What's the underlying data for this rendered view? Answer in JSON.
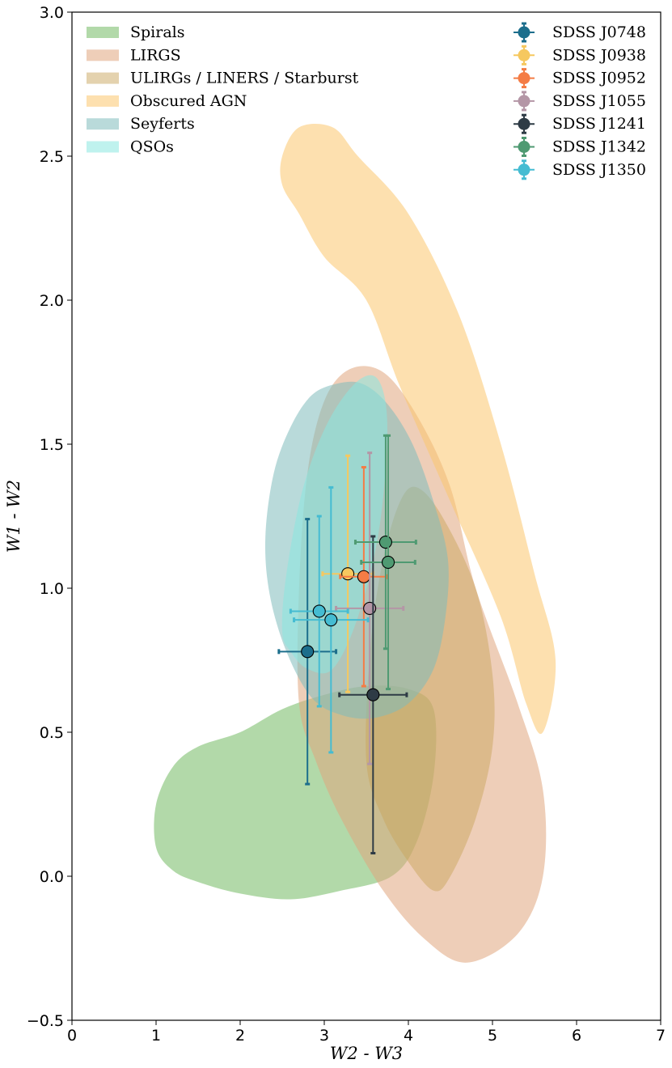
{
  "chart_data": {
    "type": "scatter",
    "title": "",
    "xlabel": "W2 - W3",
    "ylabel": "W1 - W2",
    "xlim": [
      0,
      7
    ],
    "ylim": [
      -0.5,
      3.0
    ],
    "xticks": [
      0,
      1,
      2,
      3,
      4,
      5,
      6,
      7
    ],
    "xtick_labels": [
      "0",
      "1",
      "2",
      "3",
      "4",
      "5",
      "6",
      "7"
    ],
    "yticks": [
      -0.5,
      0.0,
      0.5,
      1.0,
      1.5,
      2.0,
      2.5,
      3.0
    ],
    "ytick_labels": [
      "−0.5",
      "0.0",
      "0.5",
      "1.0",
      "1.5",
      "2.0",
      "2.5",
      "3.0"
    ],
    "grid": false,
    "regions": [
      {
        "name": "Spirals",
        "color": "#7fbf6f",
        "opacity": 0.6,
        "polygon": [
          [
            1.0,
            0.1
          ],
          [
            1.0,
            0.25
          ],
          [
            1.2,
            0.38
          ],
          [
            1.5,
            0.45
          ],
          [
            2.0,
            0.5
          ],
          [
            2.5,
            0.58
          ],
          [
            3.0,
            0.63
          ],
          [
            3.5,
            0.66
          ],
          [
            4.0,
            0.65
          ],
          [
            4.3,
            0.58
          ],
          [
            4.3,
            0.35
          ],
          [
            4.1,
            0.12
          ],
          [
            3.8,
            0.0
          ],
          [
            3.2,
            -0.05
          ],
          [
            2.6,
            -0.08
          ],
          [
            2.0,
            -0.06
          ],
          [
            1.5,
            -0.02
          ],
          [
            1.2,
            0.02
          ]
        ]
      },
      {
        "name": "LIRGS",
        "color": "#e0a67e",
        "opacity": 0.55,
        "polygon": [
          [
            2.7,
            0.6
          ],
          [
            2.7,
            1.0
          ],
          [
            2.8,
            1.4
          ],
          [
            3.0,
            1.65
          ],
          [
            3.3,
            1.76
          ],
          [
            3.7,
            1.75
          ],
          [
            4.1,
            1.6
          ],
          [
            4.5,
            1.35
          ],
          [
            4.8,
            1.0
          ],
          [
            5.3,
            0.6
          ],
          [
            5.6,
            0.3
          ],
          [
            5.6,
            0.0
          ],
          [
            5.3,
            -0.2
          ],
          [
            4.7,
            -0.3
          ],
          [
            4.2,
            -0.22
          ],
          [
            3.7,
            -0.05
          ],
          [
            3.2,
            0.2
          ],
          [
            2.9,
            0.4
          ]
        ]
      },
      {
        "name": "ULIRGs / LINERS / Starburst",
        "color": "#c9a55e",
        "opacity": 0.5,
        "polygon": [
          [
            3.5,
            0.4
          ],
          [
            3.55,
            0.8
          ],
          [
            3.7,
            1.1
          ],
          [
            3.9,
            1.3
          ],
          [
            4.1,
            1.35
          ],
          [
            4.4,
            1.25
          ],
          [
            4.8,
            1.0
          ],
          [
            5.0,
            0.7
          ],
          [
            5.0,
            0.45
          ],
          [
            4.8,
            0.2
          ],
          [
            4.5,
            0.0
          ],
          [
            4.3,
            -0.05
          ],
          [
            4.0,
            0.05
          ],
          [
            3.7,
            0.2
          ]
        ]
      },
      {
        "name": "Obscured AGN",
        "color": "#fbc76e",
        "opacity": 0.55,
        "polygon": [
          [
            2.5,
            2.5
          ],
          [
            2.7,
            2.6
          ],
          [
            3.1,
            2.6
          ],
          [
            3.4,
            2.5
          ],
          [
            4.0,
            2.3
          ],
          [
            4.6,
            1.95
          ],
          [
            5.1,
            1.5
          ],
          [
            5.5,
            1.05
          ],
          [
            5.75,
            0.75
          ],
          [
            5.6,
            0.5
          ],
          [
            5.4,
            0.6
          ],
          [
            5.1,
            0.9
          ],
          [
            4.5,
            1.3
          ],
          [
            3.9,
            1.7
          ],
          [
            3.5,
            2.0
          ],
          [
            3.0,
            2.15
          ],
          [
            2.7,
            2.3
          ],
          [
            2.5,
            2.4
          ]
        ]
      },
      {
        "name": "Seyferts",
        "color": "#7fbcbc",
        "opacity": 0.55,
        "polygon": [
          [
            2.3,
            1.18
          ],
          [
            2.4,
            1.4
          ],
          [
            2.6,
            1.56
          ],
          [
            2.85,
            1.67
          ],
          [
            3.15,
            1.71
          ],
          [
            3.45,
            1.71
          ],
          [
            3.75,
            1.64
          ],
          [
            4.05,
            1.5
          ],
          [
            4.3,
            1.3
          ],
          [
            4.47,
            1.1
          ],
          [
            4.44,
            0.9
          ],
          [
            4.3,
            0.72
          ],
          [
            4.0,
            0.6
          ],
          [
            3.6,
            0.55
          ],
          [
            3.2,
            0.56
          ],
          [
            2.85,
            0.62
          ],
          [
            2.55,
            0.78
          ],
          [
            2.35,
            0.98
          ]
        ]
      },
      {
        "name": "QSOs",
        "color": "#8ae8e0",
        "opacity": 0.55,
        "polygon": [
          [
            2.5,
            0.85
          ],
          [
            2.55,
            1.05
          ],
          [
            2.75,
            1.35
          ],
          [
            3.05,
            1.58
          ],
          [
            3.4,
            1.72
          ],
          [
            3.65,
            1.72
          ],
          [
            3.75,
            1.55
          ],
          [
            3.65,
            1.2
          ],
          [
            3.4,
            0.9
          ],
          [
            3.1,
            0.72
          ],
          [
            2.8,
            0.72
          ],
          [
            2.6,
            0.78
          ]
        ]
      }
    ],
    "series": [
      {
        "name": "SDSS J0748",
        "color": "#1c6e8c",
        "points": [
          {
            "x": 2.8,
            "y": 0.78,
            "xerr": 0.34,
            "yerr_low": 0.46,
            "yerr_high": 0.46
          }
        ]
      },
      {
        "name": "SDSS J0938",
        "color": "#f6c85f",
        "points": [
          {
            "x": 3.28,
            "y": 1.05,
            "xerr": 0.3,
            "yerr_low": 0.41,
            "yerr_high": 0.41
          }
        ]
      },
      {
        "name": "SDSS J0952",
        "color": "#f47c45",
        "points": [
          {
            "x": 3.47,
            "y": 1.04,
            "xerr": 0.28,
            "yerr_low": 0.38,
            "yerr_high": 0.38
          }
        ]
      },
      {
        "name": "SDSS J1055",
        "color": "#b496a6",
        "points": [
          {
            "x": 3.54,
            "y": 0.93,
            "xerr": 0.4,
            "yerr_low": 0.54,
            "yerr_high": 0.54
          }
        ]
      },
      {
        "name": "SDSS J1241",
        "color": "#2e3b45",
        "points": [
          {
            "x": 3.58,
            "y": 0.63,
            "xerr": 0.4,
            "yerr_low": 0.55,
            "yerr_high": 0.55
          }
        ]
      },
      {
        "name": "SDSS J1342",
        "color": "#4f9a72",
        "points": [
          {
            "x": 3.73,
            "y": 1.16,
            "xerr": 0.36,
            "yerr_low": 0.37,
            "yerr_high": 0.37
          },
          {
            "x": 3.76,
            "y": 1.09,
            "xerr": 0.32,
            "yerr_low": 0.44,
            "yerr_high": 0.44
          }
        ]
      },
      {
        "name": "SDSS J1350",
        "color": "#45bcd2",
        "points": [
          {
            "x": 2.94,
            "y": 0.92,
            "xerr": 0.34,
            "yerr_low": 0.33,
            "yerr_high": 0.33
          },
          {
            "x": 3.08,
            "y": 0.89,
            "xerr": 0.44,
            "yerr_low": 0.46,
            "yerr_high": 0.46
          }
        ]
      }
    ],
    "legend_left": [
      "Spirals",
      "LIRGS",
      "ULIRGs / LINERS / Starburst",
      "Obscured AGN",
      "Seyferts",
      "QSOs"
    ],
    "legend_right": [
      "SDSS J0748",
      "SDSS J0938",
      "SDSS J0952",
      "SDSS J1055",
      "SDSS J1241",
      "SDSS J1342",
      "SDSS J1350"
    ],
    "legend_left_position": "top-left",
    "legend_right_position": "top-right"
  }
}
